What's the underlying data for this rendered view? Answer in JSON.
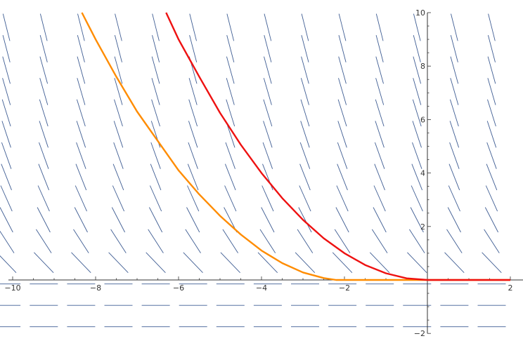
{
  "chart_data": {
    "type": "line",
    "title": "",
    "xlabel": "",
    "ylabel": "",
    "xlim": [
      -10,
      2
    ],
    "ylim": [
      -2,
      10
    ],
    "x_ticks": [
      -10,
      -8,
      -6,
      -4,
      -2,
      2
    ],
    "y_ticks": [
      -2,
      2,
      4,
      6,
      8,
      10
    ],
    "x_tick_labels": [
      "−10",
      "−8",
      "−6",
      "−4",
      "−2",
      "2"
    ],
    "y_tick_labels": [
      "−2",
      "2",
      "4",
      "6",
      "8",
      "10"
    ],
    "grid": false,
    "slope_field": {
      "description": "direction field dy/dx = -2*sqrt(y) for y > 0, zero slope for y <= 0",
      "color": "#3f5d93",
      "x_step": 0.9,
      "y_step": 0.8
    },
    "series": [
      {
        "color": "#ff8c00",
        "x": [
          -8.33,
          -8,
          -7.5,
          -7,
          -6.5,
          -6,
          -5.5,
          -5,
          -4.5,
          -4,
          -3.5,
          -3,
          -2.5,
          -2.2,
          -2,
          0,
          2
        ],
        "y": [
          10.0,
          9.0,
          7.6,
          6.3,
          5.2,
          4.1,
          3.2,
          2.4,
          1.7,
          1.1,
          0.63,
          0.28,
          0.07,
          0.0,
          0.0,
          0.0,
          0.0
        ]
      },
      {
        "color": "#ee1111",
        "x": [
          -6.3,
          -6,
          -5.5,
          -5,
          -4.5,
          -4,
          -3.5,
          -3,
          -2.5,
          -2,
          -1.5,
          -1,
          -0.5,
          0,
          1,
          2
        ],
        "y": [
          10.0,
          9.0,
          7.6,
          6.25,
          5.06,
          4.0,
          3.06,
          2.25,
          1.56,
          1.0,
          0.56,
          0.25,
          0.06,
          0.0,
          0.0,
          0.0
        ]
      }
    ]
  }
}
